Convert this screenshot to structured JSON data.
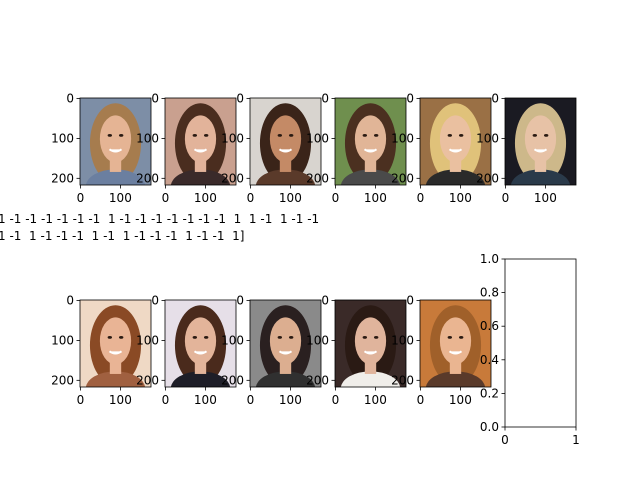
{
  "attribute_lines": [
    "1 -1 -1 -1 -1 -1 -1  1 -1 -1 -1 -1 -1 -1 -1  1  1 -1  1 -1 -1",
    "1 -1  1 -1 -1 -1  1 -1  1 -1 -1 -1  1 -1 -1  1]"
  ],
  "image_axes": {
    "x_ticks": [
      "0",
      "100"
    ],
    "y_ticks": [
      "0",
      "100",
      "200"
    ]
  },
  "empty_axes": {
    "x_ticks": [
      "0",
      "1"
    ],
    "y_ticks": [
      "0.0",
      "0.2",
      "0.4",
      "0.6",
      "0.8",
      "1.0"
    ]
  },
  "thumbnails": [
    {
      "icon": "face-photo-blonde-woman",
      "bg": "#7d8ea6",
      "hair": "#a67c4e",
      "skin": "#e5b494",
      "shirt": "#6b7fa0"
    },
    {
      "icon": "face-photo-brunette-woman",
      "bg": "#c9a08f",
      "hair": "#4a2d1f",
      "skin": "#e2b39a",
      "shirt": "#3a2a2a"
    },
    {
      "icon": "face-photo-dark-haired-woman",
      "bg": "#d8d4cf",
      "hair": "#3a2419",
      "skin": "#c48a66",
      "shirt": "#5a3a2a"
    },
    {
      "icon": "face-photo-smiling-woman",
      "bg": "#6f8f4e",
      "hair": "#4b3020",
      "skin": "#e1b597",
      "shirt": "#4a4a4a"
    },
    {
      "icon": "face-photo-blonde-woman-hand",
      "bg": "#9a7045",
      "hair": "#e0c27a",
      "skin": "#eac0a0",
      "shirt": "#2a2a2a"
    },
    {
      "icon": "face-photo-blonde-woman-dark-bg",
      "bg": "#1a1a22",
      "hair": "#cdb88a",
      "skin": "#e7c2a6",
      "shirt": "#2a3a4a"
    },
    {
      "icon": "face-photo-auburn-woman",
      "bg": "#efd9c5",
      "hair": "#8a4a25",
      "skin": "#e9b495",
      "shirt": "#a06040"
    },
    {
      "icon": "face-photo-brunette-woman-earrings",
      "bg": "#e6dfe8",
      "hair": "#4a2a1c",
      "skin": "#e3b49a",
      "shirt": "#1e1e28"
    },
    {
      "icon": "face-photo-dark-haired-woman-smiling",
      "bg": "#8a8a8a",
      "hair": "#2a2020",
      "skin": "#dcae90",
      "shirt": "#303030"
    },
    {
      "icon": "face-photo-woman-white-top",
      "bg": "#3a2a28",
      "hair": "#2a1a14",
      "skin": "#e0b49c",
      "shirt": "#f0eeea"
    },
    {
      "icon": "face-photo-auburn-woman-warm-bg",
      "bg": "#c87a3a",
      "hair": "#a0602a",
      "skin": "#eab591",
      "shirt": "#5a3a2a"
    }
  ]
}
